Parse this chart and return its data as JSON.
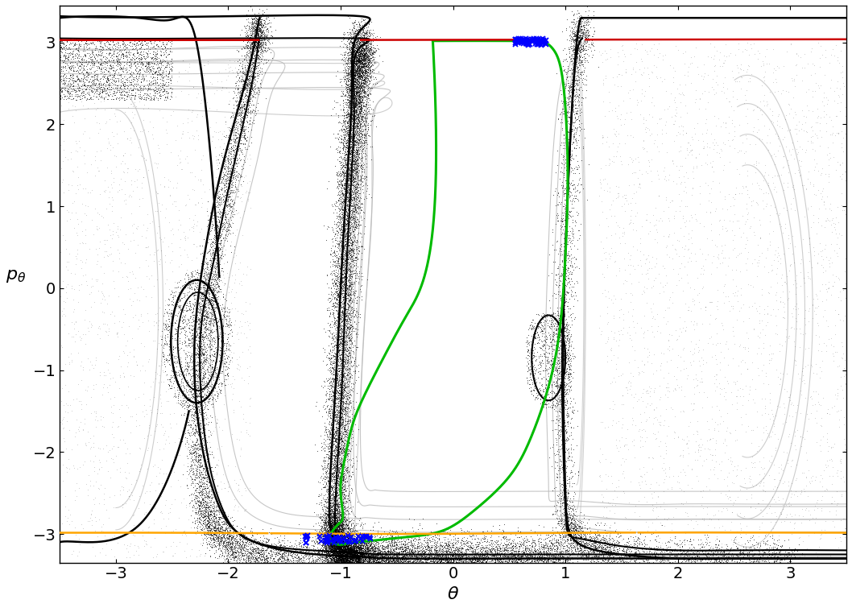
{
  "xlim": [
    -3.5,
    3.5
  ],
  "ylim": [
    -3.35,
    3.45
  ],
  "xlabel": "$\\theta$",
  "ylabel": "$p_\\theta$",
  "xlabel_fontsize": 16,
  "ylabel_fontsize": 16,
  "tick_fontsize": 14,
  "xticks": [
    -3,
    -2,
    -1,
    0,
    1,
    2,
    3
  ],
  "yticks": [
    -3,
    -2,
    -1,
    0,
    1,
    2,
    3
  ],
  "background_color": "#ffffff",
  "figsize": [
    10.58,
    7.55
  ],
  "dpi": 100,
  "green_color": "#00bb00",
  "red_color": "#cc0000",
  "orange_color": "#ffa500",
  "black_color": "#000000",
  "gray_color": "#b8b8b8",
  "blue_color": "#0000ff",
  "dot_color": "#000000",
  "dot_size": 0.5,
  "dot_alpha": 0.5
}
